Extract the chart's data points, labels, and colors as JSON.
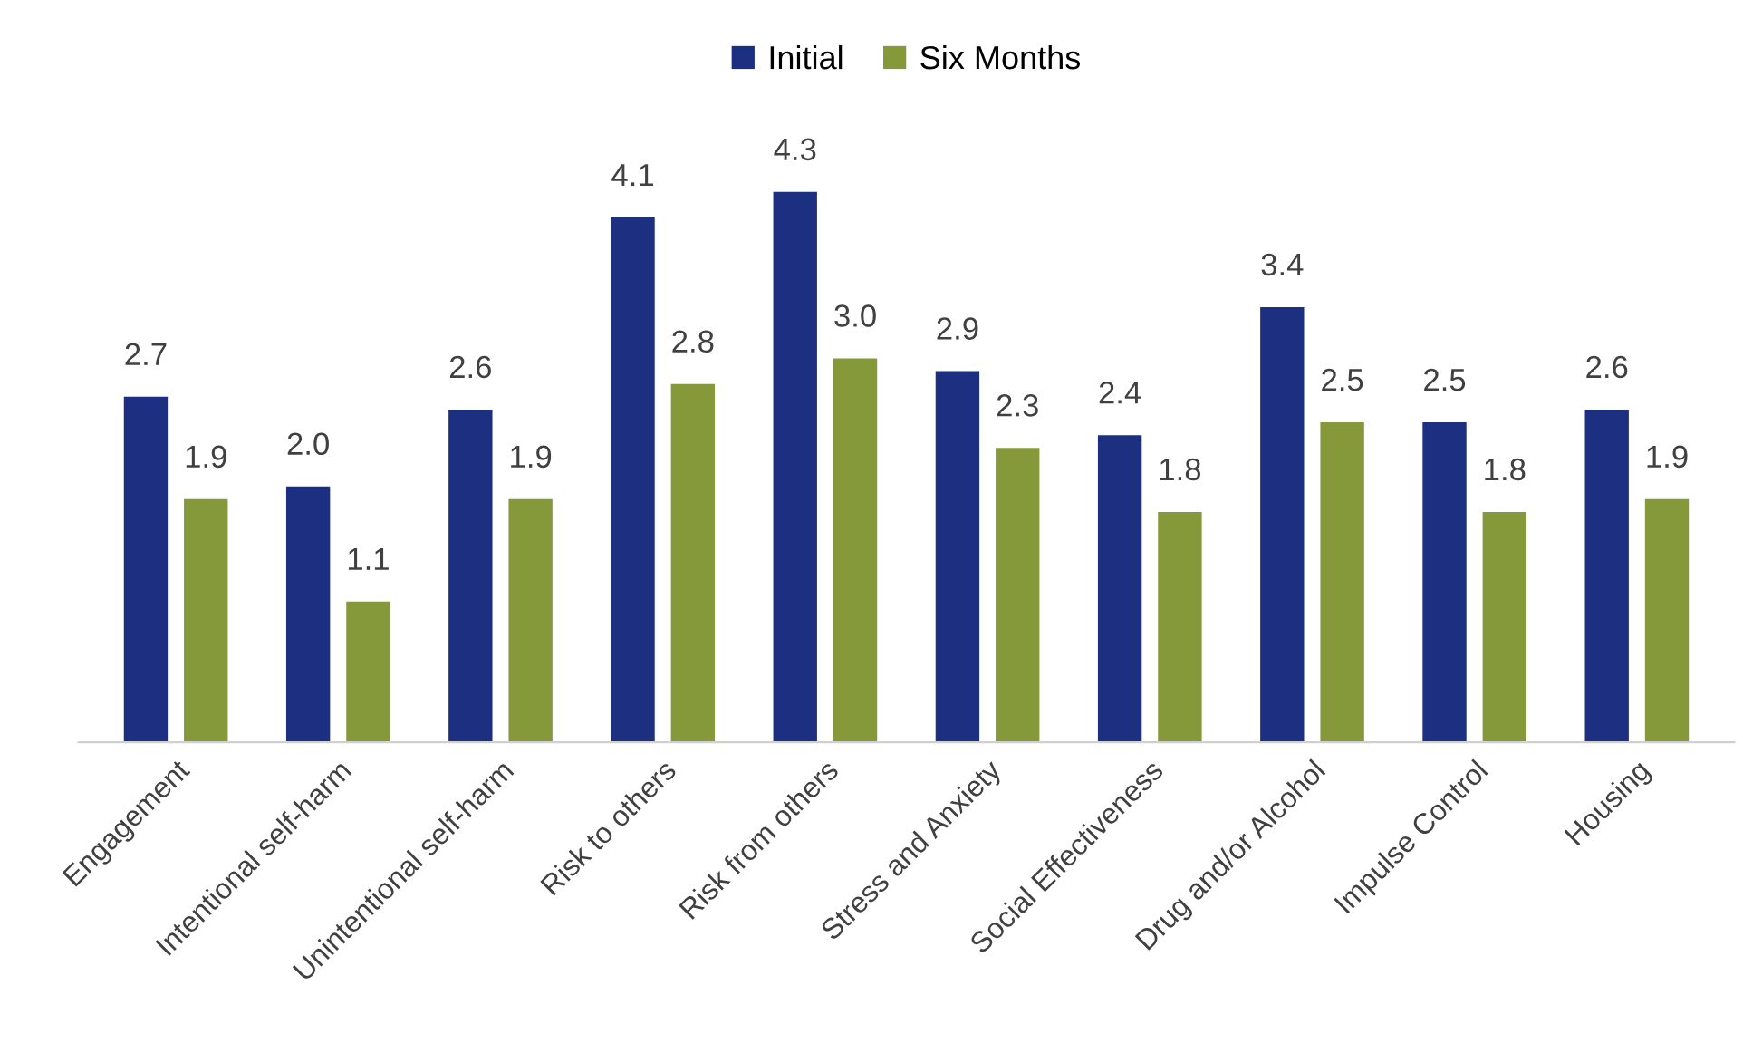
{
  "chart_data": {
    "type": "bar",
    "categories": [
      "Engagement",
      "Intentional self-harm",
      "Unintentional self-harm",
      "Risk to others",
      "Risk from others",
      "Stress and Anxiety",
      "Social Effectiveness",
      "Drug and/or Alcohol",
      "Impulse Control",
      "Housing"
    ],
    "series": [
      {
        "name": "Initial",
        "color": "#1c2f80",
        "values": [
          2.7,
          2.0,
          2.6,
          4.1,
          4.3,
          2.9,
          2.4,
          3.4,
          2.5,
          2.6
        ],
        "value_labels": [
          "2.7",
          "2.0",
          "2.6",
          "4.1",
          "4.3",
          "2.9",
          "2.4",
          "3.4",
          "2.5",
          "2.6"
        ]
      },
      {
        "name": "Six Months",
        "color": "#86993a",
        "values": [
          1.9,
          1.1,
          1.9,
          2.8,
          3.0,
          2.3,
          1.8,
          2.5,
          1.8,
          1.9
        ],
        "value_labels": [
          "1.9",
          "1.1",
          "1.9",
          "2.8",
          "3.0",
          "2.3",
          "1.8",
          "2.5",
          "1.8",
          "1.9"
        ]
      }
    ],
    "legend": "top"
  }
}
